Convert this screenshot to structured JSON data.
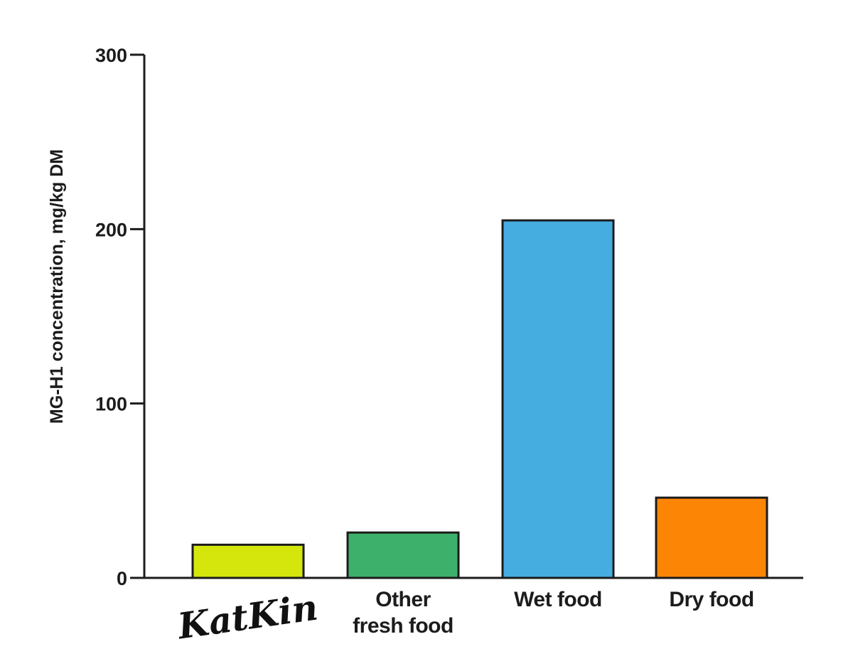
{
  "chart_data": {
    "type": "bar",
    "categories": [
      "KatKin",
      "Other fresh food",
      "Wet food",
      "Dry food"
    ],
    "category_label_lines": [
      [
        "KatKin"
      ],
      [
        "Other",
        "fresh food"
      ],
      [
        "Wet food"
      ],
      [
        "Dry food"
      ]
    ],
    "category_logo": [
      true,
      false,
      false,
      false
    ],
    "values": [
      19,
      26,
      205,
      46
    ],
    "colors": [
      "#d4e60b",
      "#3db06b",
      "#45ade0",
      "#fd8505"
    ],
    "ylabel": "MG-H1 concentration, mg/kg DM",
    "xlabel": "",
    "ylim": [
      0,
      300
    ],
    "yticks": [
      0,
      100,
      200,
      300
    ],
    "grid": false
  }
}
